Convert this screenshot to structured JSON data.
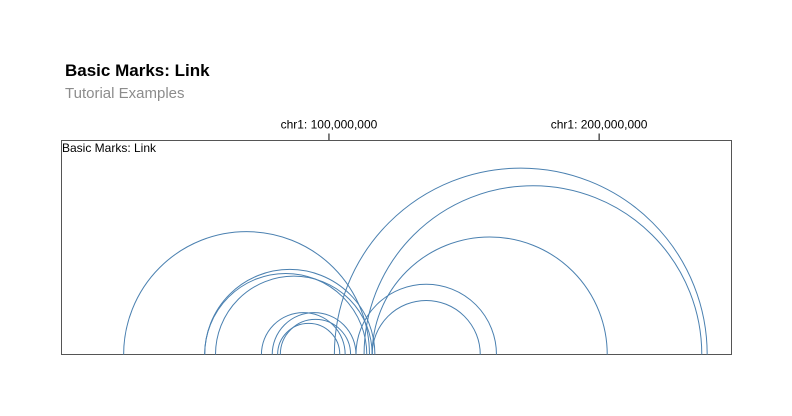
{
  "header": {
    "title": "Basic Marks: Link",
    "subtitle": "Tutorial Examples"
  },
  "chart_data": {
    "type": "link",
    "title": "Basic Marks: Link",
    "track_title": "Basic Marks: Link",
    "x_axis": {
      "position": "top",
      "chromosome": "chr1",
      "ticks": [
        {
          "value": 100000000,
          "label": "chr1: 100,000,000"
        },
        {
          "value": 200000000,
          "label": "chr1: 200,000,000"
        }
      ],
      "domain": [
        1000000,
        249000000
      ]
    },
    "style": {
      "stroke_color": "#4a80b0",
      "background": "#ffffff",
      "frame_color": "#555555"
    },
    "links": [
      {
        "start": 24000000,
        "end": 115000000
      },
      {
        "start": 54000000,
        "end": 117000000
      },
      {
        "start": 58000000,
        "end": 116000000
      },
      {
        "start": 54000000,
        "end": 114000000
      },
      {
        "start": 75000000,
        "end": 106000000
      },
      {
        "start": 79000000,
        "end": 110000000
      },
      {
        "start": 82000000,
        "end": 108000000
      },
      {
        "start": 81000000,
        "end": 104000000
      },
      {
        "start": 102000000,
        "end": 240000000
      },
      {
        "start": 113000000,
        "end": 238000000
      },
      {
        "start": 116000000,
        "end": 203000000
      },
      {
        "start": 110000000,
        "end": 162000000
      },
      {
        "start": 116000000,
        "end": 156000000
      }
    ]
  }
}
